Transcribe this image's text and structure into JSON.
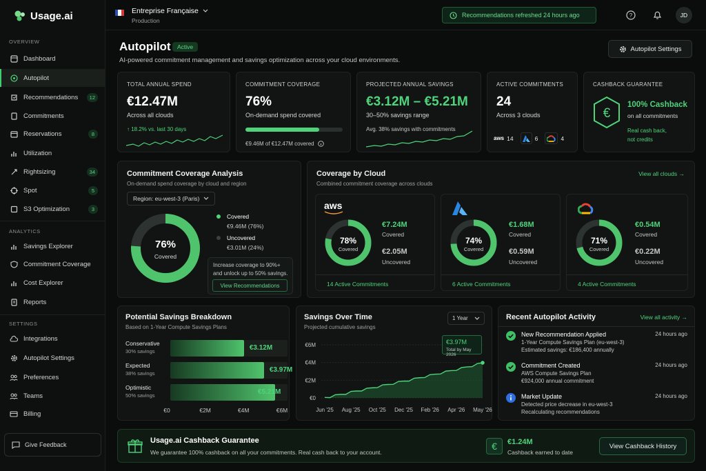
{
  "brand": {
    "name": "Usage.ai"
  },
  "sidebar": {
    "overview_label": "OVERVIEW",
    "analytics_label": "ANALYTICS",
    "settings_label": "SETTINGS",
    "items": [
      {
        "label": "Dashboard"
      },
      {
        "label": "Autopilot"
      },
      {
        "label": "Recommendations",
        "badge": "12"
      },
      {
        "label": "Commitments"
      },
      {
        "label": "Reservations",
        "badge": "8"
      },
      {
        "label": "Utilization"
      },
      {
        "label": "Rightsizing",
        "badge": "34"
      },
      {
        "label": "Spot",
        "badge": "5"
      },
      {
        "label": "S3 Optimization",
        "badge": "3"
      }
    ],
    "analytics": [
      {
        "label": "Savings Explorer"
      },
      {
        "label": "Commitment Coverage"
      },
      {
        "label": "Cost Explorer"
      },
      {
        "label": "Reports"
      }
    ],
    "settings": [
      {
        "label": "Integrations"
      },
      {
        "label": "Autopilot Settings"
      },
      {
        "label": "Preferences"
      },
      {
        "label": "Teams"
      },
      {
        "label": "Billing"
      }
    ],
    "feedback": "Give Feedback"
  },
  "topbar": {
    "org_name": "Entreprise Française",
    "env": "Production",
    "refresh": "Recommendations refreshed 24 hours ago",
    "avatar": "JD"
  },
  "page": {
    "title": "Autopilot",
    "status": "Active",
    "description": "AI-powered commitment management and savings optimization across your cloud environments.",
    "settings_btn": "Autopilot Settings"
  },
  "kpis": {
    "spend": {
      "label": "TOTAL ANNUAL SPEND",
      "value": "€12.47M",
      "sub": "Across all clouds",
      "trend": "↑ 18.2% vs. last 30 days"
    },
    "coverage": {
      "label": "COMMITMENT COVERAGE",
      "value": "76%",
      "sub": "On-demand spend covered",
      "progress": 0.76,
      "foot": "€9.46M of €12.47M covered"
    },
    "savings": {
      "label": "PROJECTED ANNUAL SAVINGS",
      "value": "€3.12M – €5.21M",
      "sub": "30–50% savings range",
      "foot": "Avg. 38% savings with commitments"
    },
    "active": {
      "label": "ACTIVE COMMITMENTS",
      "value": "24",
      "sub": "Across 3 clouds",
      "aws": "14",
      "azure": "6",
      "gcp": "4"
    },
    "cashback": {
      "label": "CASHBACK GUARANTEE",
      "title": "100% Cashback",
      "sub": "on all commitments",
      "note1": "Real cash back,",
      "note2": "not credits"
    }
  },
  "coverage_analysis": {
    "title": "Commitment Coverage Analysis",
    "subtitle": "On-demand spend coverage by cloud and region",
    "region": "Region: eu-west-3 (Paris)",
    "percent": "76%",
    "center_label": "Covered",
    "covered_fraction": 0.76,
    "covered_label": "Covered",
    "covered_value": "€9.46M (76%)",
    "uncovered_label": "Uncovered",
    "uncovered_value": "€3.01M (24%)",
    "tip1": "Increase coverage to 90%+",
    "tip2": "and unlock up to 50% savings.",
    "tip_btn": "View Recommendations"
  },
  "by_cloud": {
    "title": "Coverage by Cloud",
    "subtitle": "Combined commitment coverage across clouds",
    "view_all": "View all clouds →",
    "clouds": [
      {
        "logo": "aws",
        "percent": "78%",
        "fraction": 0.78,
        "center": "Covered",
        "covered": "€7.24M",
        "covered_label": "Covered",
        "uncovered": "€2.05M",
        "uncovered_label": "Uncovered",
        "link": "14 Active Commitments"
      },
      {
        "logo": "azure-icon",
        "percent": "74%",
        "fraction": 0.74,
        "center": "Covered",
        "covered": "€1.68M",
        "covered_label": "Covered",
        "uncovered": "€0.59M",
        "uncovered_label": "Uncovered",
        "link": "6 Active Commitments"
      },
      {
        "logo": "gcp-icon",
        "percent": "71%",
        "fraction": 0.71,
        "center": "Covered",
        "covered": "€0.54M",
        "covered_label": "Covered",
        "uncovered": "€0.22M",
        "uncovered_label": "Uncovered",
        "link": "4 Active Commitments"
      }
    ]
  },
  "breakdown": {
    "title": "Potential Savings Breakdown",
    "subtitle": "Based on 1-Year Compute Savings Plans",
    "rows": [
      {
        "name": "Conservative",
        "rate": "30% savings",
        "value": "€3.12M",
        "num": 3.12
      },
      {
        "name": "Expected",
        "rate": "38% savings",
        "value": "€3.97M",
        "num": 3.97
      },
      {
        "name": "Optimistic",
        "rate": "50% savings",
        "value": "€5.21M",
        "num": 5.21
      }
    ],
    "axis": [
      "€0",
      "€2M",
      "€4M",
      "€6M"
    ]
  },
  "chart_data": {
    "type": "area",
    "title": "Savings Over Time",
    "subtitle": "Projected cumulative savings",
    "range_select": "1 Year",
    "x_ticks": [
      "Jun '25",
      "Aug '25",
      "Oct '25",
      "Dec '25",
      "Feb '26",
      "Apr '26",
      "May '26"
    ],
    "y_ticks": [
      "€6M",
      "€4M",
      "€2M",
      "€0"
    ],
    "ylim": [
      0,
      6
    ],
    "tooltip_value": "€3.97M",
    "tooltip_label": "Total by May 2026",
    "series": [
      {
        "values": [
          0.05,
          0.15,
          0.28,
          0.4,
          0.52,
          0.66,
          0.78,
          0.9,
          1.02,
          1.14,
          1.28,
          1.4,
          1.52,
          1.65,
          1.78,
          1.9,
          2.02,
          2.15,
          2.28,
          2.42,
          2.55,
          2.68,
          2.82,
          2.95,
          3.08,
          3.22,
          3.35,
          3.5,
          3.65,
          3.8,
          3.97
        ]
      }
    ]
  },
  "activity": {
    "title": "Recent Autopilot Activity",
    "view_all": "View all activity →",
    "items": [
      {
        "kind": "check",
        "title": "New Recommendation Applied",
        "time": "24 hours ago",
        "l1": "1-Year Compute Savings Plan (eu-west-3)",
        "l2": "Estimated savings: €186,400 annually"
      },
      {
        "kind": "check",
        "title": "Commitment Created",
        "time": "24 hours ago",
        "l1": "AWS Compute Savings Plan",
        "l2": "€924,000 annual commitment"
      },
      {
        "kind": "info",
        "title": "Market Update",
        "time": "24 hours ago",
        "l1": "Detected price decrease in eu-west-3",
        "l2": "Recalculating recommendations"
      }
    ]
  },
  "banner": {
    "title": "Usage.ai Cashback Guarantee",
    "text": "We guarantee 100% cashback on all your commitments. Real cash back to your account.",
    "amount": "€1.24M",
    "amount_label": "Cashback earned to date",
    "btn": "View Cashback History"
  }
}
